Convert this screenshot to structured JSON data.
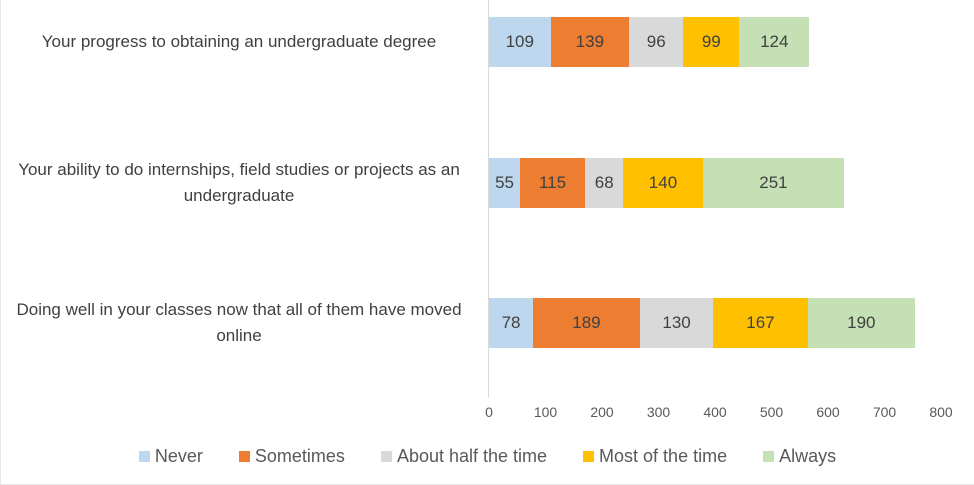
{
  "chart_data": {
    "type": "bar",
    "orientation": "horizontal",
    "stacked": true,
    "title": "",
    "categories": [
      "Your progress to obtaining an undergraduate degree",
      "Your ability to do internships, field studies or projects as an undergraduate",
      "Doing well in your classes now that all of them have moved online"
    ],
    "series": [
      {
        "name": "Never",
        "color": "#BDD7EE",
        "values": [
          109,
          55,
          78
        ]
      },
      {
        "name": "Sometimes",
        "color": "#ED7D31",
        "values": [
          139,
          115,
          189
        ]
      },
      {
        "name": "About half the time",
        "color": "#D9D9D9",
        "values": [
          96,
          68,
          130
        ]
      },
      {
        "name": "Most of the time",
        "color": "#FFC000",
        "values": [
          99,
          140,
          167
        ]
      },
      {
        "name": "Always",
        "color": "#C5E0B4",
        "values": [
          124,
          251,
          190
        ]
      }
    ],
    "x_axis": {
      "min": 0,
      "max": 800,
      "tick_interval": 100,
      "ticks": [
        0,
        100,
        200,
        300,
        400,
        500,
        600,
        700,
        800
      ]
    },
    "value_labels": "inside-center",
    "legend_position": "bottom",
    "grid": false,
    "axis_line_color": "#d9d9d9",
    "label_text_color": "#404040",
    "tick_text_color": "#595959",
    "legend_text_color": "#595959"
  }
}
